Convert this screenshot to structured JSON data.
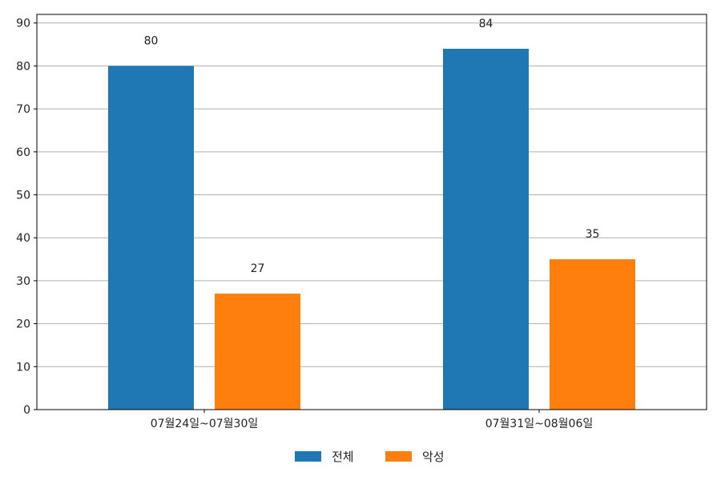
{
  "chart_data": {
    "type": "bar",
    "categories": [
      "07월24일~07월30일",
      "07월31일~08월06일"
    ],
    "series": [
      {
        "name": "전체",
        "values": [
          80,
          84
        ],
        "color": "#1f77b4"
      },
      {
        "name": "악성",
        "values": [
          27,
          35
        ],
        "color": "#ff7f0e"
      }
    ],
    "ylim": [
      0,
      92
    ],
    "yticks": [
      0,
      10,
      20,
      30,
      40,
      50,
      60,
      70,
      80,
      90
    ],
    "grid": true,
    "legend_position": "bottom-center",
    "show_data_labels": true
  }
}
